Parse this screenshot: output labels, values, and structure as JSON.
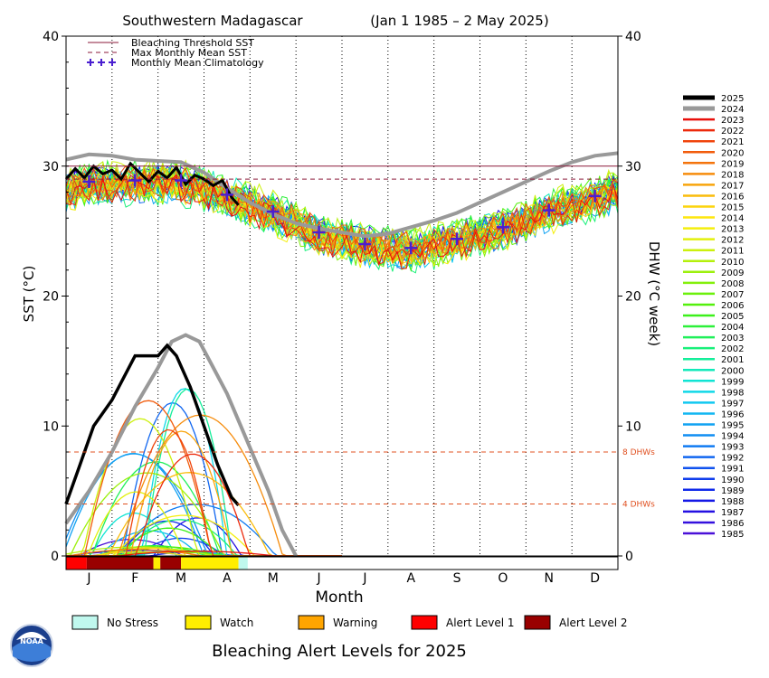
{
  "chart_data": {
    "type": "line",
    "title": "Southwestern Madagascar",
    "date_range": "(Jan 1 1985 – 2 May 2025)",
    "xlabel": "Month",
    "ylabel_left": "SST (°C)",
    "ylabel_right": "DHW (°C week)",
    "ylim": [
      0,
      40
    ],
    "y_ticks": [
      0,
      10,
      20,
      30,
      40
    ],
    "months": [
      "J",
      "F",
      "M",
      "A",
      "M",
      "J",
      "J",
      "A",
      "S",
      "O",
      "N",
      "D"
    ],
    "bleaching_threshold_sst": 30.0,
    "max_monthly_mean_sst": 29.0,
    "dhw_reference_lines": [
      {
        "value": 8,
        "label": "8 DHWs"
      },
      {
        "value": 4,
        "label": "4 DHWs"
      }
    ],
    "legend_top": [
      {
        "label": "Bleaching Threshold SST",
        "style": "solid",
        "color": "#8b1a3a"
      },
      {
        "label": "Max Monthly Mean SST",
        "style": "dashed",
        "color": "#8b1a3a"
      },
      {
        "label": "Monthly Mean Climatology",
        "style": "plus",
        "color": "#4a1fd0"
      }
    ],
    "climatology": {
      "x_month": [
        0.5,
        1.5,
        2.5,
        3.5,
        4.5,
        5.5,
        6.5,
        7.5,
        8.5,
        9.5,
        10.5,
        11.5
      ],
      "y": [
        28.8,
        28.9,
        28.9,
        27.8,
        26.5,
        24.9,
        24.0,
        23.7,
        24.4,
        25.3,
        26.6,
        27.7
      ]
    },
    "sst_2025": {
      "x_month": [
        0.0,
        0.2,
        0.4,
        0.6,
        0.8,
        1.0,
        1.2,
        1.4,
        1.6,
        1.8,
        2.0,
        2.2,
        2.4,
        2.6,
        2.8,
        3.0,
        3.2,
        3.4,
        3.6,
        3.75
      ],
      "y": [
        29.0,
        29.8,
        29.1,
        30.0,
        29.4,
        29.7,
        29.0,
        30.2,
        29.5,
        28.8,
        29.6,
        29.1,
        29.9,
        28.6,
        29.3,
        29.0,
        28.5,
        28.9,
        27.6,
        27.0
      ]
    },
    "sst_2024": {
      "x_month": [
        0.0,
        0.5,
        1.0,
        1.5,
        2.0,
        2.5,
        3.0,
        3.5,
        4.0,
        4.5,
        5.0,
        5.5,
        6.0,
        6.5,
        7.0,
        7.5,
        8.0,
        8.5,
        9.0,
        9.5,
        10.0,
        10.5,
        11.0,
        11.5,
        12.0
      ],
      "y": [
        30.5,
        30.9,
        30.8,
        30.5,
        30.4,
        30.3,
        29.5,
        28.3,
        27.2,
        26.3,
        25.6,
        25.2,
        24.9,
        24.6,
        24.8,
        25.3,
        25.8,
        26.4,
        27.2,
        28.0,
        28.8,
        29.6,
        30.3,
        30.8,
        31.0
      ]
    },
    "dhw_2025": {
      "x_month": [
        0.0,
        0.3,
        0.6,
        1.0,
        1.5,
        2.0,
        2.2,
        2.4,
        2.7,
        3.0,
        3.3,
        3.6,
        3.75
      ],
      "y": [
        4.0,
        7.0,
        10.0,
        12.0,
        15.4,
        15.4,
        16.2,
        15.4,
        13.0,
        10.0,
        7.0,
        4.5,
        3.9
      ]
    },
    "dhw_2024": {
      "x_month": [
        0.0,
        0.5,
        1.0,
        1.5,
        2.0,
        2.3,
        2.6,
        2.9,
        3.2,
        3.5,
        3.8,
        4.1,
        4.4,
        4.7,
        5.0
      ],
      "y": [
        2.5,
        5.0,
        8.0,
        11.5,
        14.5,
        16.5,
        17.0,
        16.5,
        14.5,
        12.5,
        10.0,
        7.5,
        5.0,
        2.0,
        0.0
      ]
    },
    "series_years": [
      "2025",
      "2024",
      "2023",
      "2022",
      "2021",
      "2020",
      "2019",
      "2018",
      "2017",
      "2016",
      "2015",
      "2014",
      "2013",
      "2012",
      "2011",
      "2010",
      "2009",
      "2008",
      "2007",
      "2006",
      "2005",
      "2004",
      "2003",
      "2002",
      "2001",
      "2000",
      "1999",
      "1998",
      "1997",
      "1996",
      "1995",
      "1994",
      "1993",
      "1992",
      "1991",
      "1990",
      "1989",
      "1988",
      "1987",
      "1986",
      "1985"
    ],
    "series_colors": [
      "#000000",
      "#999999",
      "#e8100c",
      "#ec2a0c",
      "#f0440c",
      "#f25c0c",
      "#f4740c",
      "#f68c0c",
      "#f8a40c",
      "#fabc0c",
      "#fcd40c",
      "#fee60c",
      "#f4ee0c",
      "#e2f00c",
      "#ccf00c",
      "#b4f00c",
      "#9cf00c",
      "#84f00c",
      "#6cf00c",
      "#54f00c",
      "#3cf01a",
      "#2cf03a",
      "#20f05a",
      "#18f07a",
      "#14ee9a",
      "#12eaba",
      "#10e4d4",
      "#10d8e8",
      "#10c8f0",
      "#10b6f2",
      "#10a2f2",
      "#108ef2",
      "#107af2",
      "#1066f0",
      "#1052ee",
      "#103eec",
      "#102aea",
      "#1418e6",
      "#2410e2",
      "#3410de",
      "#4a10d8"
    ],
    "alert_legend": [
      {
        "label": "No Stress",
        "color": "#c0f8ee"
      },
      {
        "label": "Watch",
        "color": "#ffee00"
      },
      {
        "label": "Warning",
        "color": "#ffa500"
      },
      {
        "label": "Alert Level 1",
        "color": "#ff0000"
      },
      {
        "label": "Alert Level 2",
        "color": "#990000"
      }
    ],
    "alert_bar_2025": [
      {
        "level": "Alert Level 1",
        "from_month": 0.0,
        "to_month": 0.45
      },
      {
        "level": "Alert Level 2",
        "from_month": 0.45,
        "to_month": 1.9
      },
      {
        "level": "Watch",
        "from_month": 1.9,
        "to_month": 2.05
      },
      {
        "level": "Alert Level 2",
        "from_month": 2.05,
        "to_month": 2.5
      },
      {
        "level": "Watch",
        "from_month": 2.5,
        "to_month": 3.75
      },
      {
        "level": "No Stress",
        "from_month": 3.75,
        "to_month": 3.95
      }
    ],
    "footer_title": "Bleaching Alert Levels for 2025"
  },
  "logo": {
    "text": "NOAA"
  }
}
